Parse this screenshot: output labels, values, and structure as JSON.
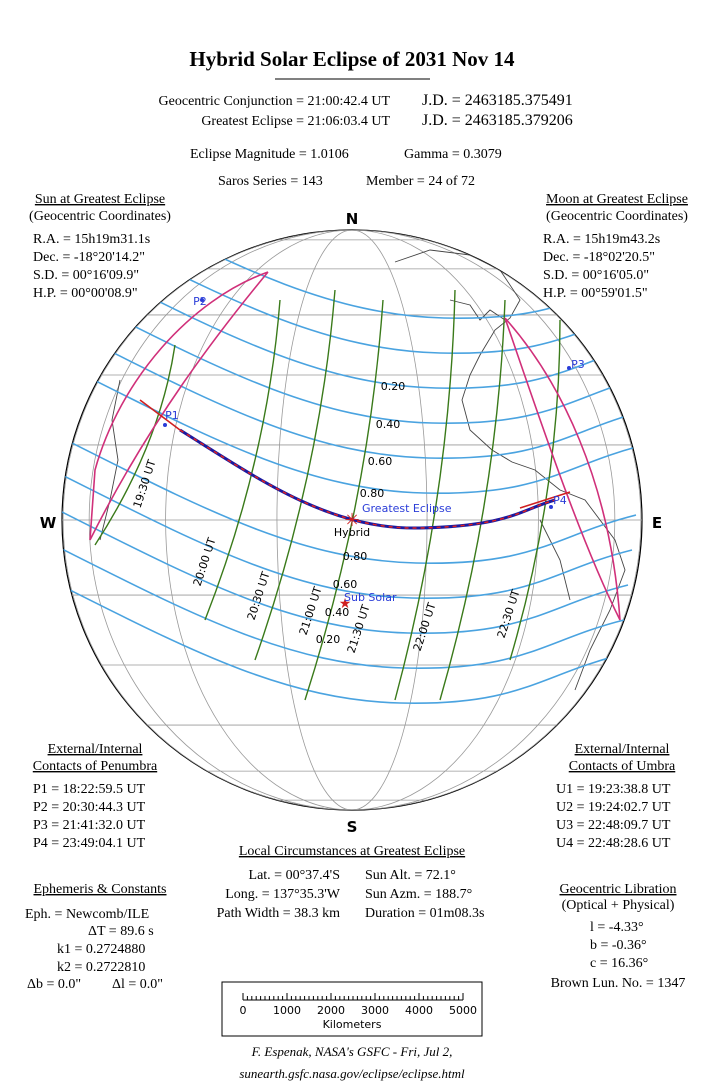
{
  "title": "Hybrid Solar Eclipse of  2031 Nov 14",
  "summary": [
    [
      "Geocentric Conjunction = 21:00:42.4 UT",
      "J.D. = 2463185.375491"
    ],
    [
      "Greatest Eclipse = 21:06:03.4 UT",
      "J.D. = 2463185.379206"
    ],
    [
      "Eclipse Magnitude = 1.0106",
      "Gamma = 0.3079"
    ],
    [
      "Saros Series = 143",
      "Member = 24 of 72"
    ]
  ],
  "sun": {
    "title": "Sun at Greatest Eclipse",
    "subtitle": "(Geocentric Coordinates)",
    "lines": [
      "R.A. = 15h19m31.1s",
      "Dec. = -18°20'14.2\"",
      "S.D. = 00°16'09.9\"",
      "H.P. = 00°00'08.9\""
    ]
  },
  "moon": {
    "title": "Moon at Greatest Eclipse",
    "subtitle": "(Geocentric Coordinates)",
    "lines": [
      "R.A. = 15h19m43.2s",
      "Dec. = -18°02'20.5\"",
      "S.D. = 00°16'05.0\"",
      "H.P. = 00°59'01.5\""
    ]
  },
  "penumbra": {
    "title": "External/Internal",
    "subtitle": "Contacts of Penumbra",
    "lines": [
      "P1 = 18:22:59.5 UT",
      "P2 = 20:30:44.3 UT",
      "P3 = 21:41:32.0 UT",
      "P4 = 23:49:04.1 UT"
    ]
  },
  "umbra": {
    "title": "External/Internal",
    "subtitle": "Contacts of Umbra",
    "lines": [
      "U1 = 19:23:38.8 UT",
      "U2 = 19:24:02.7 UT",
      "U3 = 22:48:09.7 UT",
      "U4 = 22:48:28.6 UT"
    ]
  },
  "local": {
    "title": "Local Circumstances at Greatest Eclipse",
    "rows": [
      [
        "Lat. = 00°37.4'S",
        "Sun Alt. = 72.1°"
      ],
      [
        "Long. = 137°35.3'W",
        "Sun Azm. = 188.7°"
      ],
      [
        "Path Width = 38.3 km",
        "Duration = 01m08.3s"
      ]
    ]
  },
  "ephemeris": {
    "title": "Ephemeris & Constants",
    "lines": [
      "Eph. = Newcomb/ILE",
      "ΔT =     89.6 s",
      "k1 = 0.2724880",
      "k2 = 0.2722810",
      "Δb =  0.0\"",
      "Δl =  0.0\""
    ]
  },
  "libration": {
    "title": "Geocentric Libration",
    "subtitle": "(Optical + Physical)",
    "lines": [
      "l =  -4.33°",
      "b =  -0.36°",
      "c =  16.36°"
    ],
    "brown": "Brown Lun. No. = 1347"
  },
  "scale": {
    "ticks": [
      0,
      1000,
      2000,
      3000,
      4000,
      5000
    ],
    "unit": "Kilometers"
  },
  "footer": [
    "F. Espenak, NASA's GSFC - Fri, Jul 2,",
    "sunearth.gsfc.nasa.gov/eclipse/eclipse.html"
  ],
  "map": {
    "compass": {
      "north": "N",
      "south": "S",
      "west": "W",
      "east": "E"
    },
    "magnitudes_north": [
      "0.20",
      "0.40",
      "0.60",
      "0.80"
    ],
    "magnitudes_south": [
      "0.80",
      "0.60",
      "0.40",
      "0.20"
    ],
    "times": [
      "19:30 UT",
      "20:00 UT",
      "20:30 UT",
      "21:00 UT",
      "21:30 UT",
      "22:00 UT",
      "22:30 UT"
    ],
    "contacts": [
      "P1",
      "P2",
      "P3",
      "P4"
    ],
    "greatest": "Greatest Eclipse",
    "eclipse_type": "Hybrid",
    "subsolar": "Sub Solar"
  }
}
